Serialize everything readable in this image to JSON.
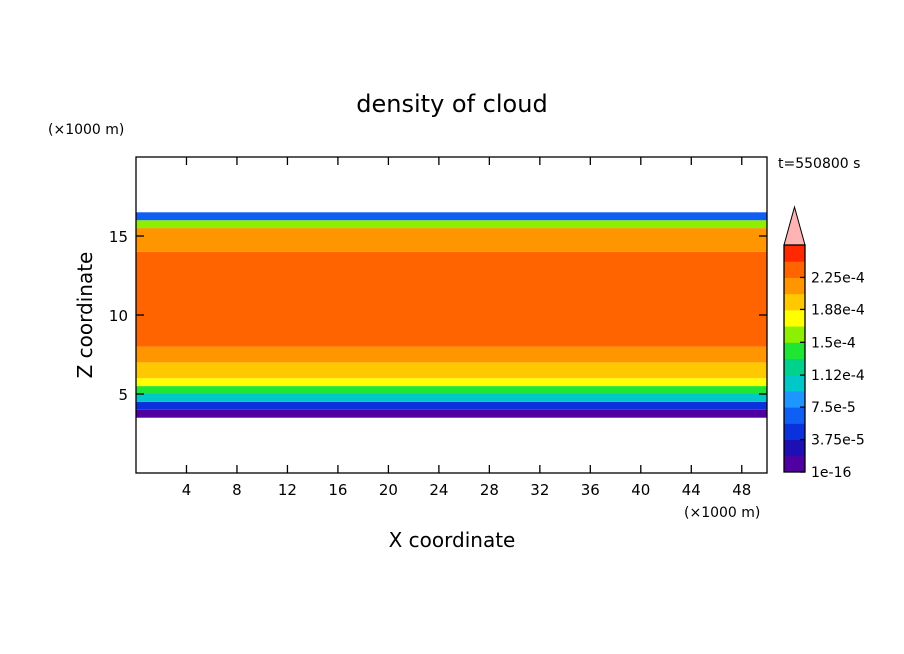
{
  "chart_data": {
    "type": "contour",
    "title": "density of cloud",
    "x_label": "X coordinate",
    "y_label": "Z coordinate",
    "x_unit": "(×1000 m)",
    "y_unit": "(×1000 m)",
    "time_label": "t=550800 s",
    "xlim": [
      0,
      50
    ],
    "ylim": [
      0,
      20
    ],
    "xticks": [
      4,
      8,
      12,
      16,
      20,
      24,
      28,
      32,
      36,
      40,
      44,
      48
    ],
    "yticks": [
      5,
      10,
      15
    ],
    "field_profile": {
      "z_edges": [
        3.5,
        4,
        4.5,
        5,
        5.5,
        6,
        7,
        8,
        14,
        15.5,
        16,
        16.5
      ],
      "values": [
        1e-16,
        5e-05,
        0.0001,
        0.00014,
        0.00017,
        0.0002,
        0.00022,
        0.00024,
        0.00022,
        0.00016,
        6e-05
      ]
    },
    "colorbar": {
      "lim": [
        1e-16,
        0.0002625
      ],
      "colors": [
        "#5000a0",
        "#1e0fb4",
        "#0a32dc",
        "#0f5ff5",
        "#1e96ff",
        "#00c8c8",
        "#00d28c",
        "#1ee632",
        "#8cf000",
        "#ffff00",
        "#ffc800",
        "#ff9600",
        "#ff6400",
        "#ff2800"
      ],
      "over_color": "#ffb4b4",
      "ticks": [
        {
          "value": 1e-16,
          "label": "1e-16"
        },
        {
          "value": 3.75e-05,
          "label": "3.75e-5"
        },
        {
          "value": 7.5e-05,
          "label": "7.5e-5"
        },
        {
          "value": 0.000112,
          "label": "1.12e-4"
        },
        {
          "value": 0.00015,
          "label": "1.5e-4"
        },
        {
          "value": 0.000188,
          "label": "1.88e-4"
        },
        {
          "value": 0.000225,
          "label": "2.25e-4"
        }
      ]
    }
  }
}
